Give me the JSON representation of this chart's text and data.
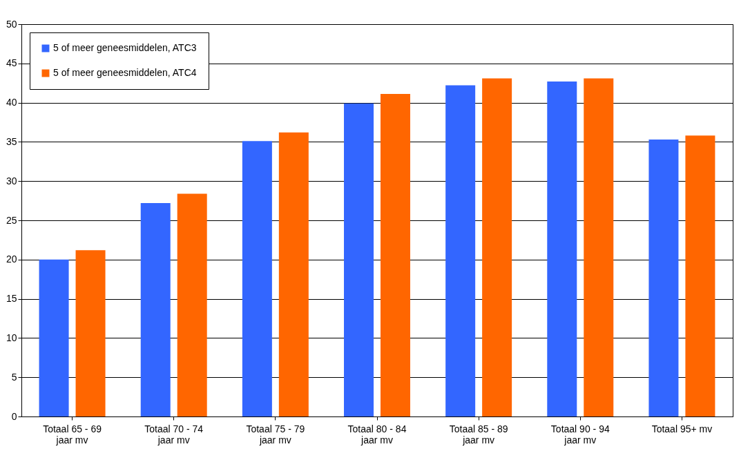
{
  "chart_data": {
    "type": "bar",
    "categories": [
      "Totaal 65 - 69\njaar mv",
      "Totaal 70 - 74\njaar mv",
      "Totaal 75 - 79\njaar mv",
      "Totaal 80 - 84\njaar mv",
      "Totaal 85 - 89\njaar mv",
      "Totaal 90 - 94\njaar mv",
      "Totaal 95+ mv"
    ],
    "series": [
      {
        "name": "5 of meer geneesmiddelen, ATC3",
        "color": "#3366ff",
        "values": [
          20.0,
          27.2,
          35.1,
          39.9,
          42.2,
          42.7,
          35.3
        ]
      },
      {
        "name": "5 of meer geneesmiddelen, ATC4",
        "color": "#ff6600",
        "values": [
          21.2,
          28.4,
          36.2,
          41.1,
          43.1,
          43.1,
          35.8
        ]
      }
    ],
    "ylim": [
      0,
      50
    ],
    "yticks": [
      0,
      5,
      10,
      15,
      20,
      25,
      30,
      35,
      40,
      45,
      50
    ],
    "grid": "y",
    "legend": "top left"
  }
}
